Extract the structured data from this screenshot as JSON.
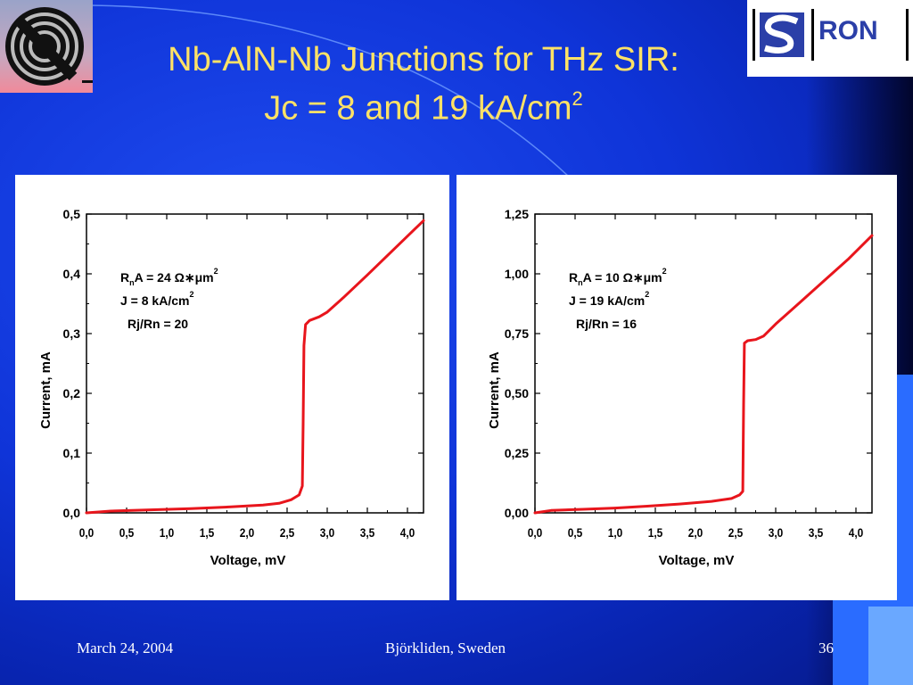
{
  "slide": {
    "title_line1": "Nb-AlN-Nb Junctions for THz SIR:",
    "title_line2": "Jc = 8 and 19 kA/cm",
    "title_sup": "2",
    "footer_date": "March 24, 2004",
    "footer_place": "Björkliden, Sweden",
    "footer_page": "36",
    "logo_right_text": "RON"
  },
  "colors": {
    "curve": "#e8151c",
    "title": "#ffe266",
    "background": "#0f34d8"
  },
  "chart_data": [
    {
      "type": "line",
      "xlabel": "Voltage, mV",
      "ylabel": "Current, mA",
      "xlim": [
        0,
        4.2
      ],
      "ylim": [
        0,
        0.5
      ],
      "xticks": [
        0,
        0.5,
        1.0,
        1.5,
        2.0,
        2.5,
        3.0,
        3.5,
        4.0
      ],
      "xtick_labels": [
        "0,0",
        "0,5",
        "1,0",
        "1,5",
        "2,0",
        "2,5",
        "3,0",
        "3,5",
        "4,0"
      ],
      "yticks": [
        0,
        0.1,
        0.2,
        0.3,
        0.4,
        0.5
      ],
      "ytick_labels": [
        "0,0",
        "0,1",
        "0,2",
        "0,3",
        "0,4",
        "0,5"
      ],
      "annotation_lines": [
        {
          "parts": [
            [
              "R",
              ""
            ],
            [
              "n",
              "sub"
            ],
            [
              "A = 24 Ω∗μm",
              ""
            ],
            [
              "2",
              "sup"
            ]
          ]
        },
        {
          "parts": [
            [
              "J = 8 kA/cm",
              ""
            ],
            [
              "2",
              "sup"
            ]
          ]
        },
        {
          "parts": [
            [
              "Rj/Rn = 20",
              ""
            ]
          ]
        }
      ],
      "series": [
        {
          "x": [
            0,
            0.3,
            0.8,
            1.3,
            1.8,
            2.2,
            2.4,
            2.55,
            2.65,
            2.69,
            2.7,
            2.71,
            2.73,
            2.78,
            2.9,
            3.0,
            3.2,
            3.5,
            3.8,
            4.1,
            4.2
          ],
          "y": [
            0,
            0.003,
            0.005,
            0.007,
            0.01,
            0.013,
            0.016,
            0.022,
            0.03,
            0.045,
            0.15,
            0.28,
            0.315,
            0.322,
            0.328,
            0.336,
            0.36,
            0.398,
            0.437,
            0.476,
            0.489
          ]
        }
      ]
    },
    {
      "type": "line",
      "xlabel": "Voltage, mV",
      "ylabel": "Current, mA",
      "xlim": [
        0,
        4.2
      ],
      "ylim": [
        0,
        1.25
      ],
      "xticks": [
        0,
        0.5,
        1.0,
        1.5,
        2.0,
        2.5,
        3.0,
        3.5,
        4.0
      ],
      "xtick_labels": [
        "0,0",
        "0,5",
        "1,0",
        "1,5",
        "2,0",
        "2,5",
        "3,0",
        "3,5",
        "4,0"
      ],
      "yticks": [
        0,
        0.25,
        0.5,
        0.75,
        1.0,
        1.25
      ],
      "ytick_labels": [
        "0,00",
        "0,25",
        "0,50",
        "0,75",
        "1,00",
        "1,25"
      ],
      "annotation_lines": [
        {
          "parts": [
            [
              "R",
              ""
            ],
            [
              "n",
              "sub"
            ],
            [
              "A = 10 Ω∗μm",
              ""
            ],
            [
              "2",
              "sup"
            ]
          ]
        },
        {
          "parts": [
            [
              "J = 19 kA/cm",
              ""
            ],
            [
              "2",
              "sup"
            ]
          ]
        },
        {
          "parts": [
            [
              "Rj/Rn = 16",
              ""
            ]
          ]
        }
      ],
      "series": [
        {
          "x": [
            0,
            0.2,
            0.6,
            1.0,
            1.4,
            1.8,
            2.2,
            2.45,
            2.55,
            2.59,
            2.6,
            2.61,
            2.65,
            2.75,
            2.85,
            3.0,
            3.3,
            3.6,
            3.9,
            4.2
          ],
          "y": [
            0,
            0.01,
            0.015,
            0.02,
            0.028,
            0.037,
            0.048,
            0.06,
            0.075,
            0.09,
            0.45,
            0.71,
            0.72,
            0.725,
            0.74,
            0.79,
            0.88,
            0.97,
            1.06,
            1.16
          ]
        }
      ]
    }
  ]
}
